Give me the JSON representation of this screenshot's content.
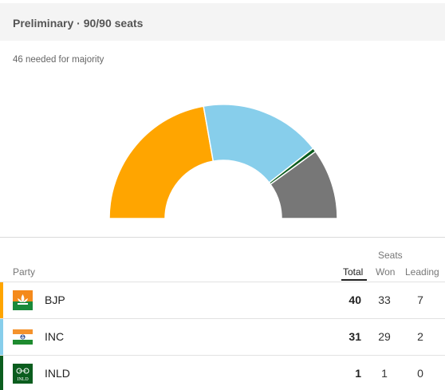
{
  "header": {
    "title": "Preliminary · 90/90 seats"
  },
  "majority_text": "46 needed for majority",
  "table": {
    "seats_label": "Seats",
    "columns": {
      "party": "Party",
      "total": "Total",
      "won": "Won",
      "leading": "Leading"
    },
    "rows": [
      {
        "party": "BJP",
        "total": "40",
        "won": "33",
        "leading": "7",
        "color": "#ffa500",
        "logo_icon": "bjp-lotus-logo"
      },
      {
        "party": "INC",
        "total": "31",
        "won": "29",
        "leading": "2",
        "color": "#87ceeb",
        "logo_icon": "inc-flag-logo"
      },
      {
        "party": "INLD",
        "total": "1",
        "won": "1",
        "leading": "0",
        "color": "#0b5d1e",
        "logo_icon": "inld-logo",
        "logo_text": "INLD"
      }
    ]
  },
  "seat_chart": {
    "type": "pie",
    "total_seats": 90,
    "segments": [
      {
        "party": "BJP",
        "seats": 40,
        "color": "#ffa500"
      },
      {
        "party": "INC",
        "seats": 31,
        "color": "#87ceeb"
      },
      {
        "party": "INLD",
        "seats": 1,
        "color": "#0b5d1e"
      },
      {
        "party": "Others",
        "seats": 18,
        "color": "#777777"
      }
    ]
  }
}
